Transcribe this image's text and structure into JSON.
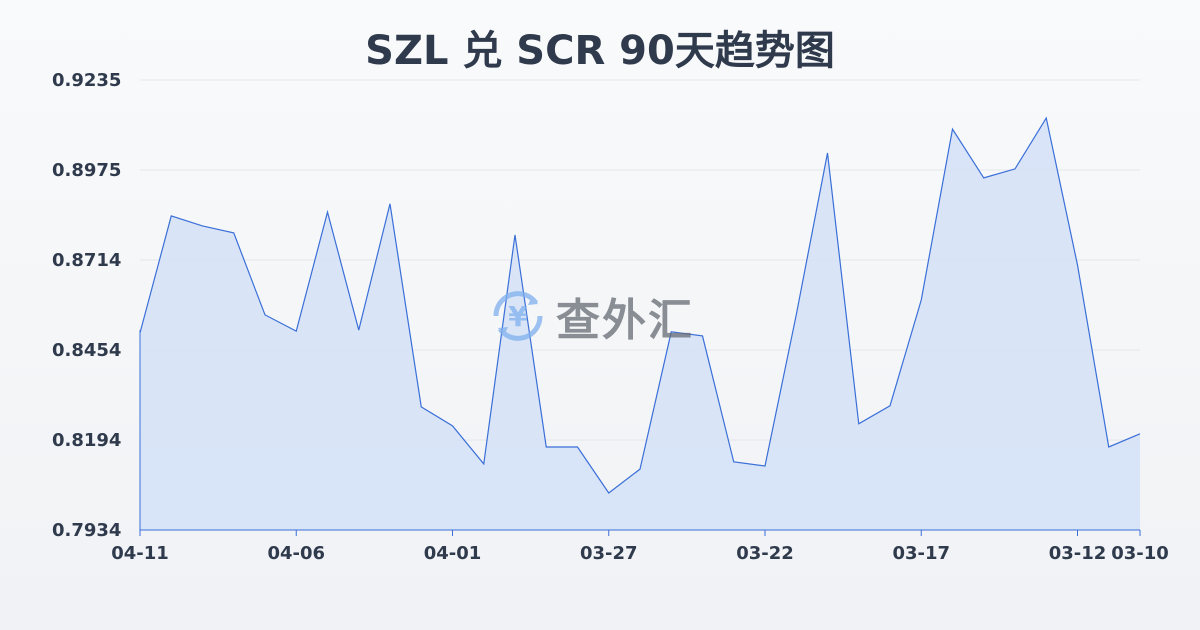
{
  "chart_data": {
    "type": "area",
    "title": "SZL 兑 SCR 90天趋势图",
    "xlabel": "",
    "ylabel": "",
    "x": [
      "04-11",
      "04-10",
      "04-09",
      "04-08",
      "04-07",
      "04-06",
      "04-05",
      "04-04",
      "04-03",
      "04-02",
      "04-01",
      "03-31",
      "03-30",
      "03-29",
      "03-28",
      "03-27",
      "03-26",
      "03-25",
      "03-24",
      "03-23",
      "03-22",
      "03-21",
      "03-20",
      "03-19",
      "03-18",
      "03-17",
      "03-16",
      "03-15",
      "03-14",
      "03-13",
      "03-12",
      "03-11",
      "03-10"
    ],
    "values": [
      0.8504,
      0.8842,
      0.8813,
      0.8793,
      0.8556,
      0.8509,
      0.8853,
      0.8512,
      0.8877,
      0.829,
      0.8235,
      0.8125,
      0.8787,
      0.8174,
      0.8174,
      0.8041,
      0.811,
      0.8507,
      0.8495,
      0.8131,
      0.8119,
      0.8556,
      0.9024,
      0.8241,
      0.8293,
      0.8599,
      0.9093,
      0.8952,
      0.8978,
      0.9125,
      0.87,
      0.8174,
      0.8212
    ],
    "x_tick_labels": [
      "04-11",
      "04-06",
      "04-01",
      "03-27",
      "03-22",
      "03-17",
      "03-12",
      "03-10"
    ],
    "y_tick_labels": [
      "0.9235",
      "0.8975",
      "0.8714",
      "0.8454",
      "0.8194",
      "0.7934"
    ],
    "ylim": [
      0.7934,
      0.9235
    ],
    "grid": true,
    "line_color": "#3a6fd8",
    "fill_color": "#d4e0f7"
  },
  "watermark": {
    "text": "查外汇",
    "icon": "yen-exchange-icon"
  }
}
